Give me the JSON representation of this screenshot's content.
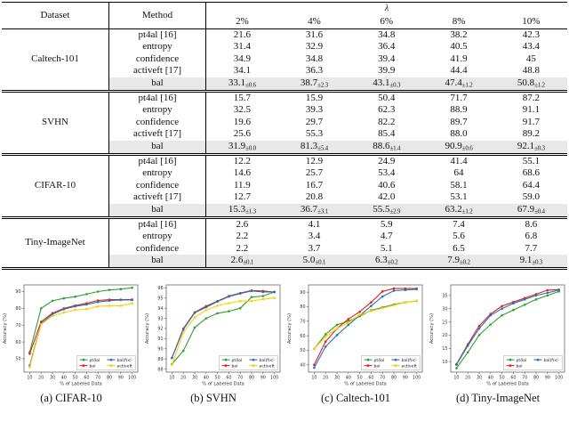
{
  "table": {
    "header": {
      "dataset": "Dataset",
      "method": "Method",
      "lambda": "λ",
      "columns": [
        "2%",
        "4%",
        "6%",
        "8%",
        "10%"
      ]
    },
    "blocks": [
      {
        "dataset": "Caltech-101",
        "rows": [
          {
            "method": "pt4al [16]",
            "values": [
              "21.6",
              "31.6",
              "34.8",
              "38.2",
              "42.3"
            ]
          },
          {
            "method": "entropy",
            "values": [
              "31.4",
              "32.9",
              "36.4",
              "40.5",
              "43.4"
            ]
          },
          {
            "method": "confidence",
            "values": [
              "34.9",
              "34.8",
              "39.4",
              "41.9",
              "45"
            ]
          },
          {
            "method": "activeft [17]",
            "values": [
              "34.1",
              "36.3",
              "39.9",
              "44.4",
              "48.8"
            ]
          },
          {
            "method": "bal",
            "highlight": true,
            "values": [
              "33.1",
              "38.7",
              "43.1",
              "47.4",
              "50.8"
            ],
            "pm": [
              "0.6",
              "2.3",
              "0.3",
              "1.2",
              "1.2"
            ]
          }
        ]
      },
      {
        "dataset": "SVHN",
        "rows": [
          {
            "method": "pt4al [16]",
            "values": [
              "15.7",
              "15.9",
              "50.4",
              "71.7",
              "87.2"
            ]
          },
          {
            "method": "entropy",
            "values": [
              "32.5",
              "39.3",
              "62.3",
              "88.9",
              "91.1"
            ]
          },
          {
            "method": "confidence",
            "values": [
              "19.6",
              "29.7",
              "82.2",
              "89.7",
              "91.7"
            ]
          },
          {
            "method": "activeft [17]",
            "values": [
              "25.6",
              "55.3",
              "85.4",
              "88.0",
              "89.2"
            ]
          },
          {
            "method": "bal",
            "highlight": true,
            "values": [
              "31.9",
              "81.3",
              "88.6",
              "90.9",
              "92.1"
            ],
            "pm": [
              "0.0",
              "5.4",
              "1.4",
              "0.6",
              "0.3"
            ]
          }
        ]
      },
      {
        "dataset": "CIFAR-10",
        "rows": [
          {
            "method": "pt4al [16]",
            "values": [
              "12.2",
              "12.9",
              "24.9",
              "41.4",
              "55.1"
            ]
          },
          {
            "method": "entropy",
            "values": [
              "14.6",
              "25.7",
              "53.4",
              "64",
              "68.6"
            ]
          },
          {
            "method": "confidence",
            "values": [
              "11.9",
              "16.7",
              "40.6",
              "58.1",
              "64.4"
            ]
          },
          {
            "method": "activeft [17]",
            "values": [
              "12.7",
              "20.8",
              "42.0",
              "53.1",
              "59.0"
            ]
          },
          {
            "method": "bal",
            "highlight": true,
            "values": [
              "15.3",
              "36.7",
              "55.5",
              "63.2",
              "67.9"
            ],
            "pm": [
              "1.3",
              "3.1",
              "2.9",
              "1.2",
              "0.4"
            ]
          }
        ]
      },
      {
        "dataset": "Tiny-ImageNet",
        "rows": [
          {
            "method": "pt4al [16]",
            "values": [
              "2.6",
              "4.1",
              "5.9",
              "7.4",
              "8.6"
            ]
          },
          {
            "method": "entropy",
            "values": [
              "2.2",
              "3.4",
              "4.7",
              "5.6",
              "6.8"
            ]
          },
          {
            "method": "confidence",
            "values": [
              "2.2",
              "3.7",
              "5.1",
              "6.5",
              "7.7"
            ]
          },
          {
            "method": "bal",
            "highlight": true,
            "values": [
              "2.6",
              "5.0",
              "6.3",
              "7.9",
              "9.1"
            ],
            "pm": [
              "0.1",
              "0.1",
              "0.2",
              "0.2",
              "0.3"
            ]
          }
        ]
      }
    ]
  },
  "colors": {
    "pt4al": "#33a02c",
    "bal": "#e3211d",
    "bal_fix": "#2273b8",
    "activeft": "#fccf03",
    "axis": "#555555",
    "highlight_row": "#e8e8e8"
  },
  "chart_data": [
    {
      "type": "line",
      "caption": "(a) CIFAR-10",
      "xlabel": "% of Labeled Data",
      "ylabel": "Accuracy (%)",
      "x": [
        10,
        20,
        30,
        40,
        50,
        60,
        70,
        80,
        90,
        100
      ],
      "ylim": [
        42,
        94
      ],
      "yticks": [
        50,
        60,
        70,
        80,
        90
      ],
      "legend_position": "lower right",
      "series": [
        {
          "name": "pt4al",
          "color": "#33a02c",
          "values": [
            54,
            80,
            84.5,
            86,
            87,
            88.5,
            90,
            91,
            91.5,
            92.3
          ]
        },
        {
          "name": "bal",
          "color": "#e3211d",
          "values": [
            53,
            72,
            77.2,
            80,
            81.7,
            83,
            84.7,
            85.2,
            85.2,
            85.3
          ]
        },
        {
          "name": "bal(fix)",
          "color": "#2273b8",
          "values": [
            46,
            71,
            76.5,
            79.5,
            81.2,
            82.3,
            83.8,
            84.6,
            85,
            85
          ]
        },
        {
          "name": "activeft",
          "color": "#fccf03",
          "values": [
            45,
            70.5,
            75.5,
            77.5,
            79,
            79.6,
            81.2,
            81.5,
            81.6,
            83
          ]
        }
      ]
    },
    {
      "type": "line",
      "caption": "(b) SVHN",
      "xlabel": "% of Labeled Data",
      "ylabel": "Accuracy (%)",
      "x": [
        10,
        20,
        30,
        40,
        50,
        60,
        70,
        80,
        90,
        100
      ],
      "ylim": [
        87.7,
        96.3
      ],
      "yticks": [
        88,
        89,
        90,
        91,
        92,
        93,
        94,
        95,
        96
      ],
      "legend_position": "lower right",
      "series": [
        {
          "name": "pt4al",
          "color": "#33a02c",
          "values": [
            88.5,
            89.8,
            92.1,
            93.0,
            93.5,
            93.7,
            94.0,
            95.1,
            95.2,
            95.6
          ]
        },
        {
          "name": "bal",
          "color": "#e3211d",
          "values": [
            89.1,
            92.0,
            93.6,
            94.2,
            94.7,
            95.2,
            95.5,
            95.75,
            95.7,
            95.6
          ]
        },
        {
          "name": "bal(fix)",
          "color": "#2273b8",
          "values": [
            89.1,
            91.9,
            93.55,
            94.1,
            94.65,
            95.15,
            95.45,
            95.7,
            95.6,
            95.6
          ]
        },
        {
          "name": "activeft",
          "color": "#fccf03",
          "values": [
            88.4,
            91.6,
            93.1,
            93.8,
            94.25,
            94.5,
            94.7,
            94.7,
            94.9,
            95.0
          ]
        }
      ]
    },
    {
      "type": "line",
      "caption": "(c) Caltech-101",
      "xlabel": "% of Labeled Data",
      "ylabel": "Accuracy (%)",
      "x": [
        10,
        20,
        30,
        40,
        50,
        60,
        70,
        80,
        90,
        100
      ],
      "ylim": [
        35,
        95
      ],
      "yticks": [
        40,
        50,
        60,
        70,
        80,
        90
      ],
      "legend_position": "lower right",
      "series": [
        {
          "name": "pt4al",
          "color": "#33a02c",
          "values": [
            51,
            61,
            67.5,
            70,
            73.5,
            77.5,
            79.5,
            81.5,
            83,
            84
          ]
        },
        {
          "name": "bal",
          "color": "#e3211d",
          "values": [
            40,
            56,
            65,
            71.5,
            76.5,
            83,
            90.5,
            92.5,
            92.5,
            92.5
          ]
        },
        {
          "name": "bal(fix)",
          "color": "#2273b8",
          "values": [
            38,
            52.5,
            60.5,
            67.5,
            74,
            80.5,
            87,
            91,
            91.5,
            92
          ]
        },
        {
          "name": "activeft",
          "color": "#fccf03",
          "values": [
            51,
            59.5,
            65,
            69,
            74.5,
            77,
            79,
            81,
            83,
            84
          ]
        }
      ]
    },
    {
      "type": "line",
      "caption": "(d) Tiny-ImageNet",
      "xlabel": "% of Labeled Data",
      "ylabel": "Accuracy (%)",
      "x": [
        10,
        20,
        30,
        40,
        50,
        60,
        70,
        80,
        90,
        100
      ],
      "ylim": [
        6,
        39
      ],
      "yticks": [
        10,
        15,
        20,
        25,
        30,
        35
      ],
      "legend_position": "lower right",
      "series": [
        {
          "name": "pt4al",
          "color": "#33a02c",
          "values": [
            7.5,
            13.5,
            20,
            24,
            27.5,
            29.5,
            31.5,
            33.5,
            35,
            36.5
          ]
        },
        {
          "name": "bal",
          "color": "#e3211d",
          "values": [
            9,
            16.5,
            23.5,
            28,
            31,
            32.5,
            34,
            35.5,
            37,
            37.2
          ]
        },
        {
          "name": "bal(fix)",
          "color": "#2273b8",
          "values": [
            8.8,
            16,
            22.5,
            27.5,
            30,
            32,
            33.5,
            35,
            36,
            37
          ]
        }
      ]
    }
  ]
}
